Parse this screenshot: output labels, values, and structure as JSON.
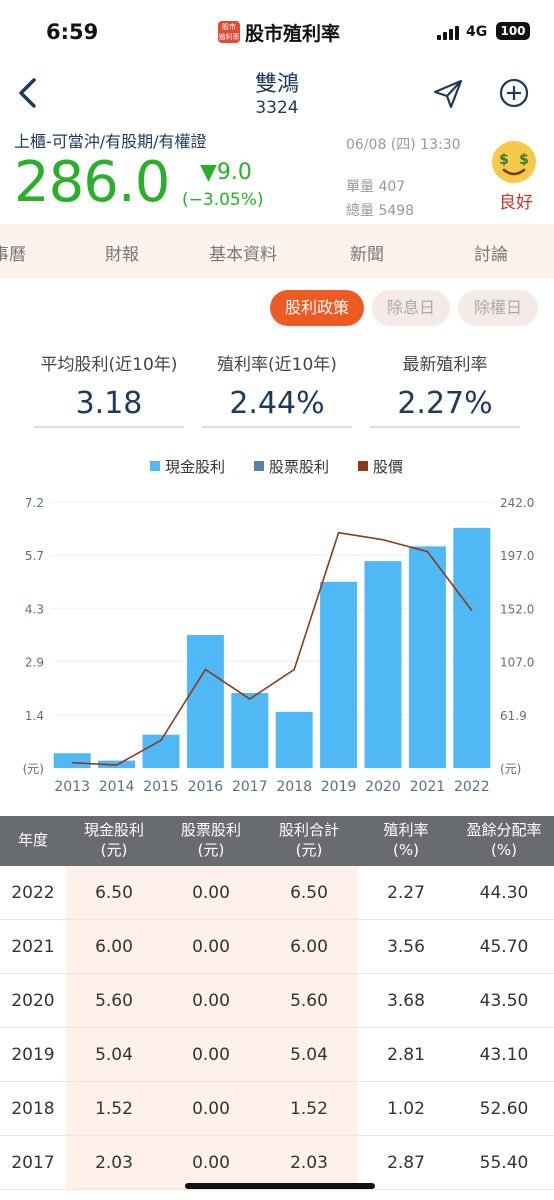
{
  "status": {
    "time": "6:59",
    "app_badge_top": "股市",
    "app_badge_bottom": "殖利率",
    "app_name": "股市殖利率",
    "network": "4G",
    "battery": "100"
  },
  "nav": {
    "name": "雙鴻",
    "code": "3324"
  },
  "quote": {
    "tags": "上櫃-可當沖/有股期/有權證",
    "price": "286.0",
    "change": "▼9.0",
    "change_pct": "(−3.05%)",
    "time": "06/08 (四) 13:30",
    "volume_single": "單量 407",
    "volume_total": "總量 5498",
    "rating": "良好"
  },
  "tabs": [
    "事曆",
    "財報",
    "基本資料",
    "新聞",
    "討論"
  ],
  "policy_buttons": [
    "股利政策",
    "除息日",
    "除權日"
  ],
  "stats": [
    {
      "label": "平均股利(近10年)",
      "value": "3.18"
    },
    {
      "label": "殖利率(近10年)",
      "value": "2.44%"
    },
    {
      "label": "最新殖利率",
      "value": "2.27%"
    }
  ],
  "colors": {
    "cash": "#4fb8f5",
    "stock": "#5b7fa6",
    "price": "#8b3a1a",
    "green": "#2bae2b",
    "accent": "#ee5a24"
  },
  "chart_data": {
    "type": "bar",
    "categories": [
      "2013",
      "2014",
      "2015",
      "2016",
      "2017",
      "2018",
      "2019",
      "2020",
      "2021",
      "2022"
    ],
    "series": [
      {
        "name": "現金股利",
        "type": "bar",
        "axis": "left",
        "values": [
          0.4,
          0.2,
          0.9,
          3.6,
          2.03,
          1.52,
          5.04,
          5.6,
          6.0,
          6.5
        ]
      },
      {
        "name": "股票股利",
        "type": "bar",
        "axis": "left",
        "values": [
          0,
          0,
          0,
          0,
          0,
          0,
          0,
          0,
          0,
          0
        ]
      },
      {
        "name": "股價",
        "type": "line",
        "axis": "right",
        "values": [
          21,
          19,
          40,
          100,
          75,
          100,
          216,
          210,
          200,
          150
        ]
      }
    ],
    "y_left_ticks": [
      "7.2",
      "5.7",
      "4.3",
      "2.9",
      "1.4",
      "(元)"
    ],
    "y_right_ticks": [
      "242.0",
      "197.0",
      "152.0",
      "107.0",
      "61.9",
      "(元)"
    ],
    "ylim_left": [
      0,
      7.2
    ],
    "ylim_right": [
      16.5,
      242.0
    ],
    "legend_position": "top-center"
  },
  "table": {
    "headers": [
      {
        "l1": "年度",
        "l2": ""
      },
      {
        "l1": "現金股利",
        "l2": "(元)"
      },
      {
        "l1": "股票股利",
        "l2": "(元)"
      },
      {
        "l1": "股利合計",
        "l2": "(元)"
      },
      {
        "l1": "殖利率",
        "l2": "(%)"
      },
      {
        "l1": "盈餘分配率",
        "l2": "(%)"
      }
    ],
    "rows": [
      [
        "2022",
        "6.50",
        "0.00",
        "6.50",
        "2.27",
        "44.30"
      ],
      [
        "2021",
        "6.00",
        "0.00",
        "6.00",
        "3.56",
        "45.70"
      ],
      [
        "2020",
        "5.60",
        "0.00",
        "5.60",
        "3.68",
        "43.50"
      ],
      [
        "2019",
        "5.04",
        "0.00",
        "5.04",
        "2.81",
        "43.10"
      ],
      [
        "2018",
        "1.52",
        "0.00",
        "1.52",
        "1.02",
        "52.60"
      ],
      [
        "2017",
        "2.03",
        "0.00",
        "2.03",
        "2.87",
        "55.40"
      ]
    ]
  }
}
